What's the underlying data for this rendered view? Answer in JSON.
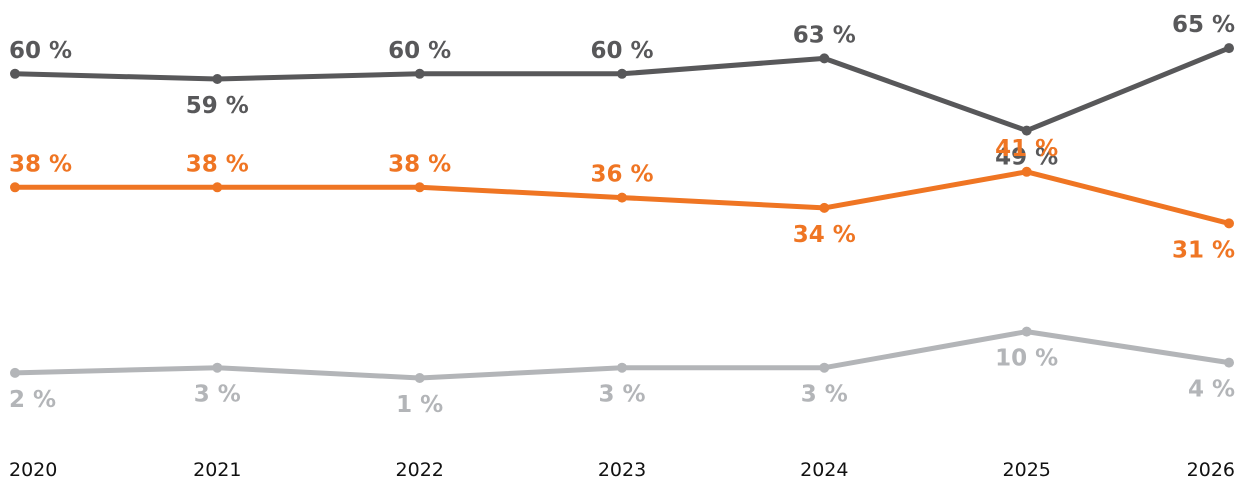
{
  "chart_data": {
    "type": "line",
    "title": "",
    "xlabel": "",
    "ylabel": "",
    "x": [
      "2020",
      "2021",
      "2022",
      "2023",
      "2024",
      "2025",
      "2026"
    ],
    "ylim": [
      0,
      70
    ],
    "grid": false,
    "legend": "none",
    "series": [
      {
        "color": "#58585a",
        "values": [
          60,
          59,
          60,
          60,
          63,
          49,
          65
        ],
        "labels": [
          "60 %",
          "59 %",
          "60 %",
          "60 %",
          "63 %",
          "49 %",
          "65 %"
        ]
      },
      {
        "color": "#ef7523",
        "values": [
          38,
          38,
          38,
          36,
          34,
          41,
          31
        ],
        "labels": [
          "38 %",
          "38 %",
          "38 %",
          "36 %",
          "34 %",
          "41 %",
          "31 %"
        ]
      },
      {
        "color": "#b3b5b8",
        "values": [
          2,
          3,
          1,
          3,
          3,
          10,
          4
        ],
        "labels": [
          "2 %",
          "3 %",
          "1 %",
          "3 %",
          "3 %",
          "10 %",
          "4 %"
        ]
      }
    ]
  }
}
